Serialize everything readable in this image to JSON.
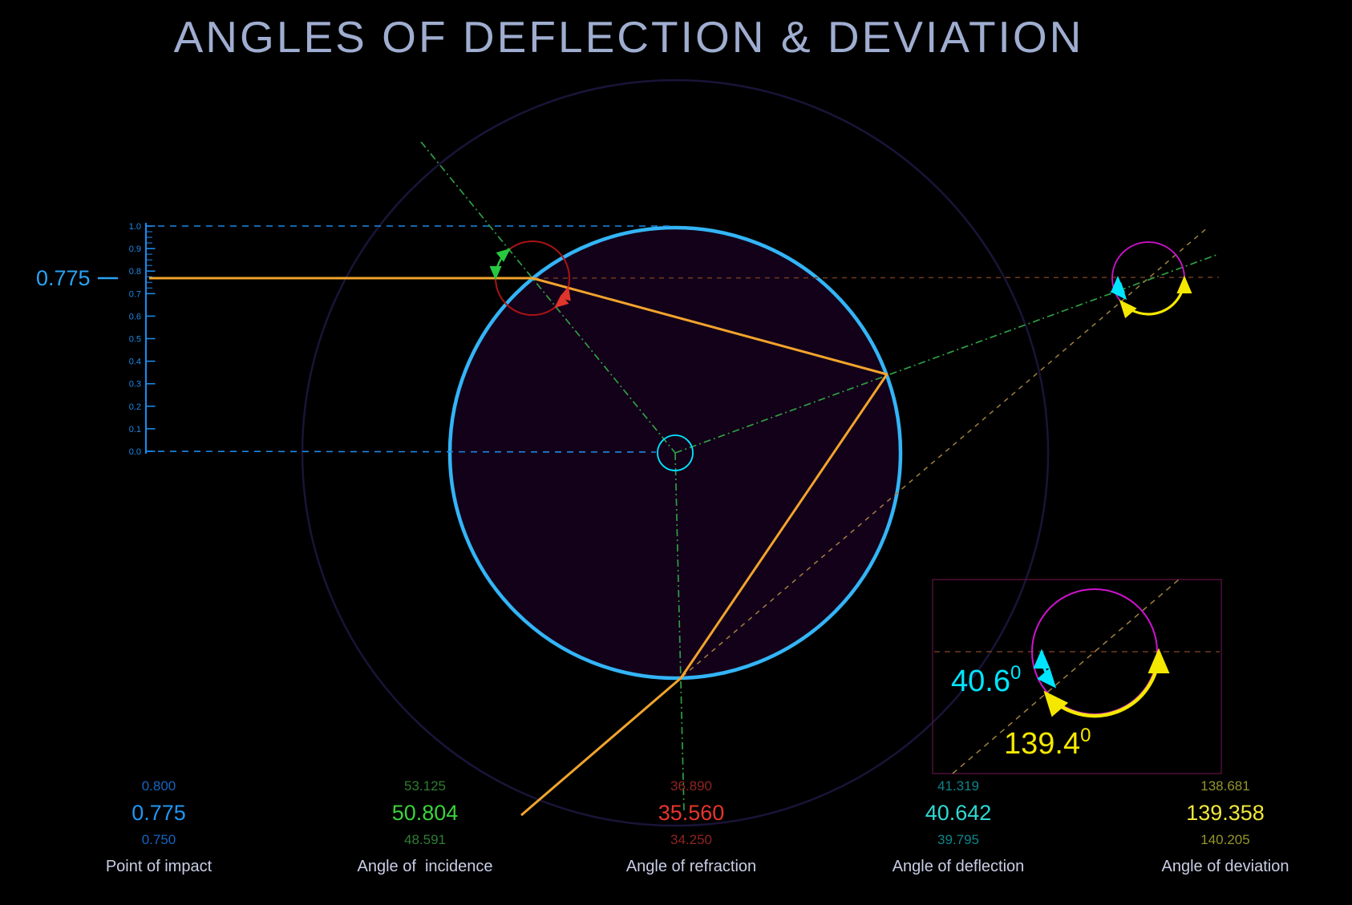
{
  "title": "ANGLES OF DEFLECTION & DEVIATION",
  "scale": {
    "marker_value": "0.775",
    "tick_labels": [
      "1.0",
      "0.9",
      "0.8",
      "0.7",
      "0.6",
      "0.5",
      "0.4",
      "0.3",
      "0.2",
      "0.1",
      "0.0"
    ]
  },
  "inset": {
    "deflection_value": "40.6",
    "deviation_value": "139.4",
    "degree_superscript": "0"
  },
  "readouts": [
    {
      "label": "Point of impact",
      "above": "0.800",
      "value": "0.775",
      "below": "0.750",
      "color": "#2196f3",
      "dim_color": "#1565c0"
    },
    {
      "label": "Angle of  incidence",
      "above": "53.125",
      "value": "50.804",
      "below": "48.591",
      "color": "#3bd23b",
      "dim_color": "#2e7d32"
    },
    {
      "label": "Angle of refraction",
      "above": "36.890",
      "value": "35.560",
      "below": "34.250",
      "color": "#e8352c",
      "dim_color": "#8e2420"
    },
    {
      "label": "Angle of deflection",
      "above": "41.319",
      "value": "40.642",
      "below": "39.795",
      "color": "#2fd9d4",
      "dim_color": "#0f8389"
    },
    {
      "label": "Angle of deviation",
      "above": "138.681",
      "value": "139.358",
      "below": "140.205",
      "color": "#f0e63a",
      "dim_color": "#95952e"
    }
  ],
  "colors": {
    "background": "#000000",
    "title_text": "#9fadd0",
    "axis_blue": "#1e88e5",
    "impact_blue": "#29a3f4",
    "ray_orange": "#f2a42c",
    "drop_circle_blue": "#33b5f7",
    "drop_fill": "#130019",
    "outer_faint_circle": "#1a1438",
    "normal_green": "#2f9e44",
    "incidence_arc_green": "#27c93f",
    "refraction_arc_red": "#e0352c",
    "impact_marker_red": "#aa1414",
    "center_circle_cyan": "#00e5ff",
    "deflection_cyan": "#00e5ff",
    "deviation_yellow": "#f5e800",
    "construction_magenta": "#cf13cf",
    "incident_extension_brown": "#6e3a22",
    "exit_extension_tan": "#a08040",
    "inset_border": "#4d1038",
    "readout_label_text": "#c8cee6"
  }
}
